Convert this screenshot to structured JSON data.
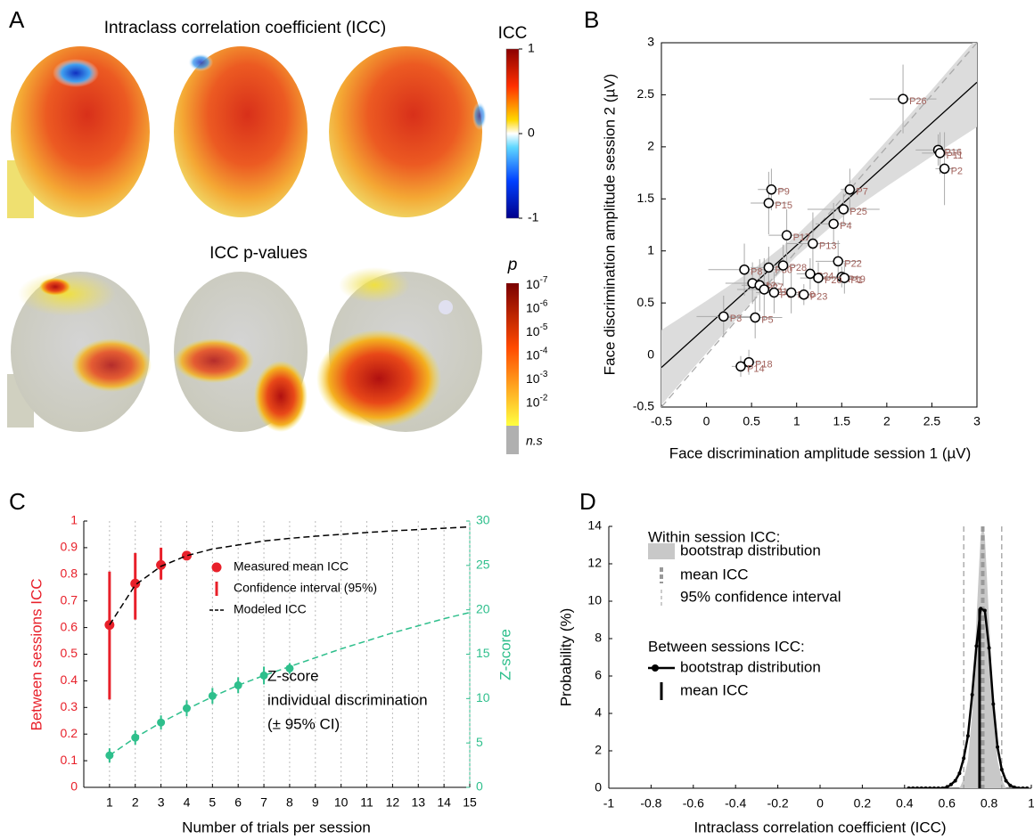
{
  "panel_a": {
    "label": "A",
    "title": "Intraclass correlation coefficient (ICC)",
    "p_title": "ICC p-values",
    "icc_colorbar": {
      "label": "ICC",
      "range": [
        -1,
        1
      ],
      "ticks": [
        1,
        0,
        -1
      ]
    },
    "p_colorbar": {
      "label": "p",
      "ticks": [
        {
          "base": "10",
          "exponent": "-7"
        },
        {
          "base": "10",
          "exponent": "-6"
        },
        {
          "base": "10",
          "exponent": "-5"
        },
        {
          "base": "10",
          "exponent": "-4"
        },
        {
          "base": "10",
          "exponent": "-3"
        },
        {
          "base": "10",
          "exponent": "-2"
        }
      ],
      "ns_label": "n.s"
    }
  },
  "chart_data": [
    {
      "label": "B",
      "type": "scatter",
      "xlabel": "Face discrimination amplitude session 1 (µV)",
      "ylabel": "Face discrimination amplitude session 2 (µV)",
      "xlim": [
        -0.5,
        3
      ],
      "ylim": [
        -0.5,
        3
      ],
      "xticks": [
        -0.5,
        0,
        0.5,
        1,
        1.5,
        2,
        2.5,
        3
      ],
      "yticks": [
        -0.5,
        0,
        0.5,
        1,
        1.5,
        2,
        2.5,
        3
      ],
      "point_labels": [
        "P26",
        "P16",
        "P11",
        "P2",
        "P7",
        "P9",
        "P15",
        "P25",
        "P4",
        "P17",
        "P13",
        "P22",
        "P30",
        "P28",
        "P24",
        "P19",
        "P1",
        "P20",
        "P8",
        "P12",
        "P27",
        "P21",
        "P6",
        "P10",
        "P23",
        "P3",
        "P5",
        "P18",
        "P14"
      ],
      "x": [
        2.18,
        2.57,
        2.59,
        2.64,
        1.59,
        0.72,
        0.69,
        1.52,
        1.41,
        0.89,
        1.18,
        1.46,
        0.69,
        0.85,
        1.15,
        1.5,
        1.53,
        1.24,
        0.42,
        0.51,
        0.59,
        0.64,
        0.75,
        0.94,
        1.08,
        0.19,
        0.54,
        0.47,
        0.38
      ],
      "values": [
        2.46,
        1.97,
        1.94,
        1.79,
        1.59,
        1.59,
        1.46,
        1.4,
        1.26,
        1.15,
        1.07,
        0.9,
        0.84,
        0.86,
        0.78,
        0.75,
        0.74,
        0.74,
        0.82,
        0.69,
        0.67,
        0.63,
        0.6,
        0.6,
        0.58,
        0.37,
        0.36,
        -0.07,
        -0.11
      ],
      "xerr": [
        0.37,
        0.25,
        0.2,
        0.1,
        0.1,
        0.15,
        0.2,
        0.4,
        0.2,
        0.2,
        0.3,
        0.25,
        0.2,
        0.15,
        0.15,
        0.2,
        0.15,
        0.2,
        0.4,
        0.3,
        0.2,
        0.3,
        0.2,
        0.15,
        0.1,
        0.3,
        0.3,
        0.12,
        0.1
      ],
      "yerr": [
        0.33,
        0.15,
        0.2,
        0.35,
        0.2,
        0.2,
        0.3,
        0.15,
        0.2,
        0.25,
        0.3,
        0.2,
        0.2,
        0.2,
        0.15,
        0.1,
        0.15,
        0.15,
        0.25,
        0.2,
        0.25,
        0.3,
        0.2,
        0.2,
        0.1,
        0.2,
        0.2,
        0.12,
        0.1
      ],
      "point_color": "#ffffff",
      "label_color": "#a0605a",
      "fit": {
        "x": [
          -0.5,
          3
        ],
        "y": [
          -0.12,
          2.62
        ]
      },
      "ci_band": {
        "x": [
          -0.5,
          0,
          0.5,
          1,
          1.5,
          2,
          2.5,
          3
        ],
        "lower": [
          -0.48,
          0.02,
          0.51,
          0.95,
          1.32,
          1.62,
          1.91,
          2.19
        ],
        "upper": [
          0.24,
          0.52,
          0.81,
          1.15,
          1.58,
          2.06,
          2.55,
          3.05
        ]
      },
      "identity_line": true
    },
    {
      "label": "C",
      "type": "line",
      "xlabel": "Number of trials per session",
      "ylabel": "Between sessions ICC",
      "y2label": "Z-score",
      "x": [
        1,
        2,
        3,
        4,
        5,
        6,
        7,
        8,
        9,
        10,
        11,
        12,
        13,
        14,
        15
      ],
      "xlim": [
        0,
        15
      ],
      "xticks": [
        1,
        2,
        3,
        4,
        5,
        6,
        7,
        8,
        9,
        10,
        11,
        12,
        13,
        14,
        15
      ],
      "ylim": [
        0,
        1
      ],
      "yticks": [
        0,
        0.1,
        0.2,
        0.3,
        0.4,
        0.5,
        0.6,
        0.7,
        0.8,
        0.9,
        1
      ],
      "y2lim": [
        0,
        30
      ],
      "y2ticks": [
        0,
        5,
        10,
        15,
        20,
        25,
        30
      ],
      "grid": "x-dotted",
      "annotation": [
        "Z-score",
        "individual discrimination",
        "(± 95% CI)"
      ],
      "series": [
        {
          "name": "Measured mean ICC",
          "ci_name": "Confidence interval (95%)",
          "color": "#e8202a",
          "style": "points",
          "values": [
            0.61,
            0.765,
            0.835,
            0.87,
            null,
            null,
            null,
            null,
            null,
            null,
            null,
            null,
            null,
            null,
            null
          ],
          "lower": [
            0.33,
            0.63,
            0.78,
            null,
            null,
            null,
            null,
            null,
            null,
            null,
            null,
            null,
            null,
            null,
            null
          ],
          "upper": [
            0.81,
            0.88,
            0.9,
            null,
            null,
            null,
            null,
            null,
            null,
            null,
            null,
            null,
            null,
            null,
            null
          ]
        },
        {
          "name": "Modeled ICC",
          "color": "#000000",
          "style": "dashed",
          "values": [
            0.61,
            0.76,
            0.83,
            0.87,
            0.895,
            0.91,
            0.925,
            0.935,
            0.943,
            0.95,
            0.957,
            0.963,
            0.968,
            0.973,
            0.978
          ]
        },
        {
          "axis": "y2",
          "color": "#2ebf8c",
          "style": "points",
          "values": [
            3.6,
            5.6,
            7.3,
            8.9,
            10.3,
            11.5,
            12.6,
            13.4,
            null,
            null,
            null,
            null,
            null,
            null,
            null
          ],
          "err": [
            0.8,
            0.8,
            0.8,
            0.9,
            0.9,
            0.9,
            1.0,
            0.6,
            null,
            null,
            null,
            null,
            null,
            null,
            null
          ]
        },
        {
          "axis": "y2",
          "color": "#2ebf8c",
          "style": "dashed",
          "values": [
            3.6,
            5.6,
            7.3,
            8.8,
            10.2,
            11.5,
            12.6,
            13.6,
            14.6,
            15.6,
            16.5,
            17.4,
            18.2,
            19.0,
            19.7
          ]
        }
      ]
    },
    {
      "label": "D",
      "type": "line",
      "xlabel": "Intraclass correlation coefficient (ICC)",
      "ylabel": "Probability (%)",
      "xlim": [
        -1,
        1
      ],
      "xticks": [
        -1,
        -0.8,
        -0.6,
        -0.4,
        -0.2,
        0,
        0.2,
        0.4,
        0.6,
        0.8,
        1
      ],
      "ylim": [
        0,
        14
      ],
      "yticks": [
        0,
        2,
        4,
        6,
        8,
        10,
        12,
        14
      ],
      "groups": [
        {
          "title": "Within session ICC:",
          "distribution": {
            "name": "bootstrap distribution",
            "color": "#c8c8c8",
            "x": [
              0.66,
              0.68,
              0.7,
              0.72,
              0.74,
              0.76,
              0.77,
              0.78,
              0.8,
              0.82,
              0.84,
              0.86,
              0.88
            ],
            "values": [
              0,
              0.5,
              1.5,
              4,
              9,
              13.5,
              14,
              13.5,
              9,
              4.5,
              1.5,
              0.5,
              0
            ]
          },
          "mean": {
            "name": "mean ICC",
            "value": 0.77,
            "color": "#999999"
          },
          "ci": {
            "name": "95% confidence interval",
            "values": [
              0.68,
              0.86
            ],
            "color": "#999999"
          }
        },
        {
          "title": "Between sessions ICC:",
          "distribution": {
            "name": "bootstrap distribution",
            "color": "#000000",
            "x": [
              0.42,
              0.44,
              0.46,
              0.48,
              0.5,
              0.52,
              0.54,
              0.56,
              0.58,
              0.6,
              0.62,
              0.64,
              0.66,
              0.68,
              0.7,
              0.72,
              0.74,
              0.76,
              0.78,
              0.8,
              0.82,
              0.84,
              0.86,
              0.88,
              0.9,
              0.92,
              0.94,
              0.96,
              0.98
            ],
            "values": [
              0,
              0,
              0,
              0,
              0,
              0,
              0,
              0,
              0,
              0.05,
              0.2,
              0.4,
              0.8,
              1.6,
              2.8,
              5,
              7.6,
              9.6,
              9.5,
              7.5,
              4.5,
              2.2,
              1,
              0.4,
              0.15,
              0.05,
              0,
              0,
              0
            ]
          },
          "mean": {
            "name": "mean ICC",
            "value": 0.755,
            "color": "#000000"
          }
        }
      ]
    }
  ]
}
